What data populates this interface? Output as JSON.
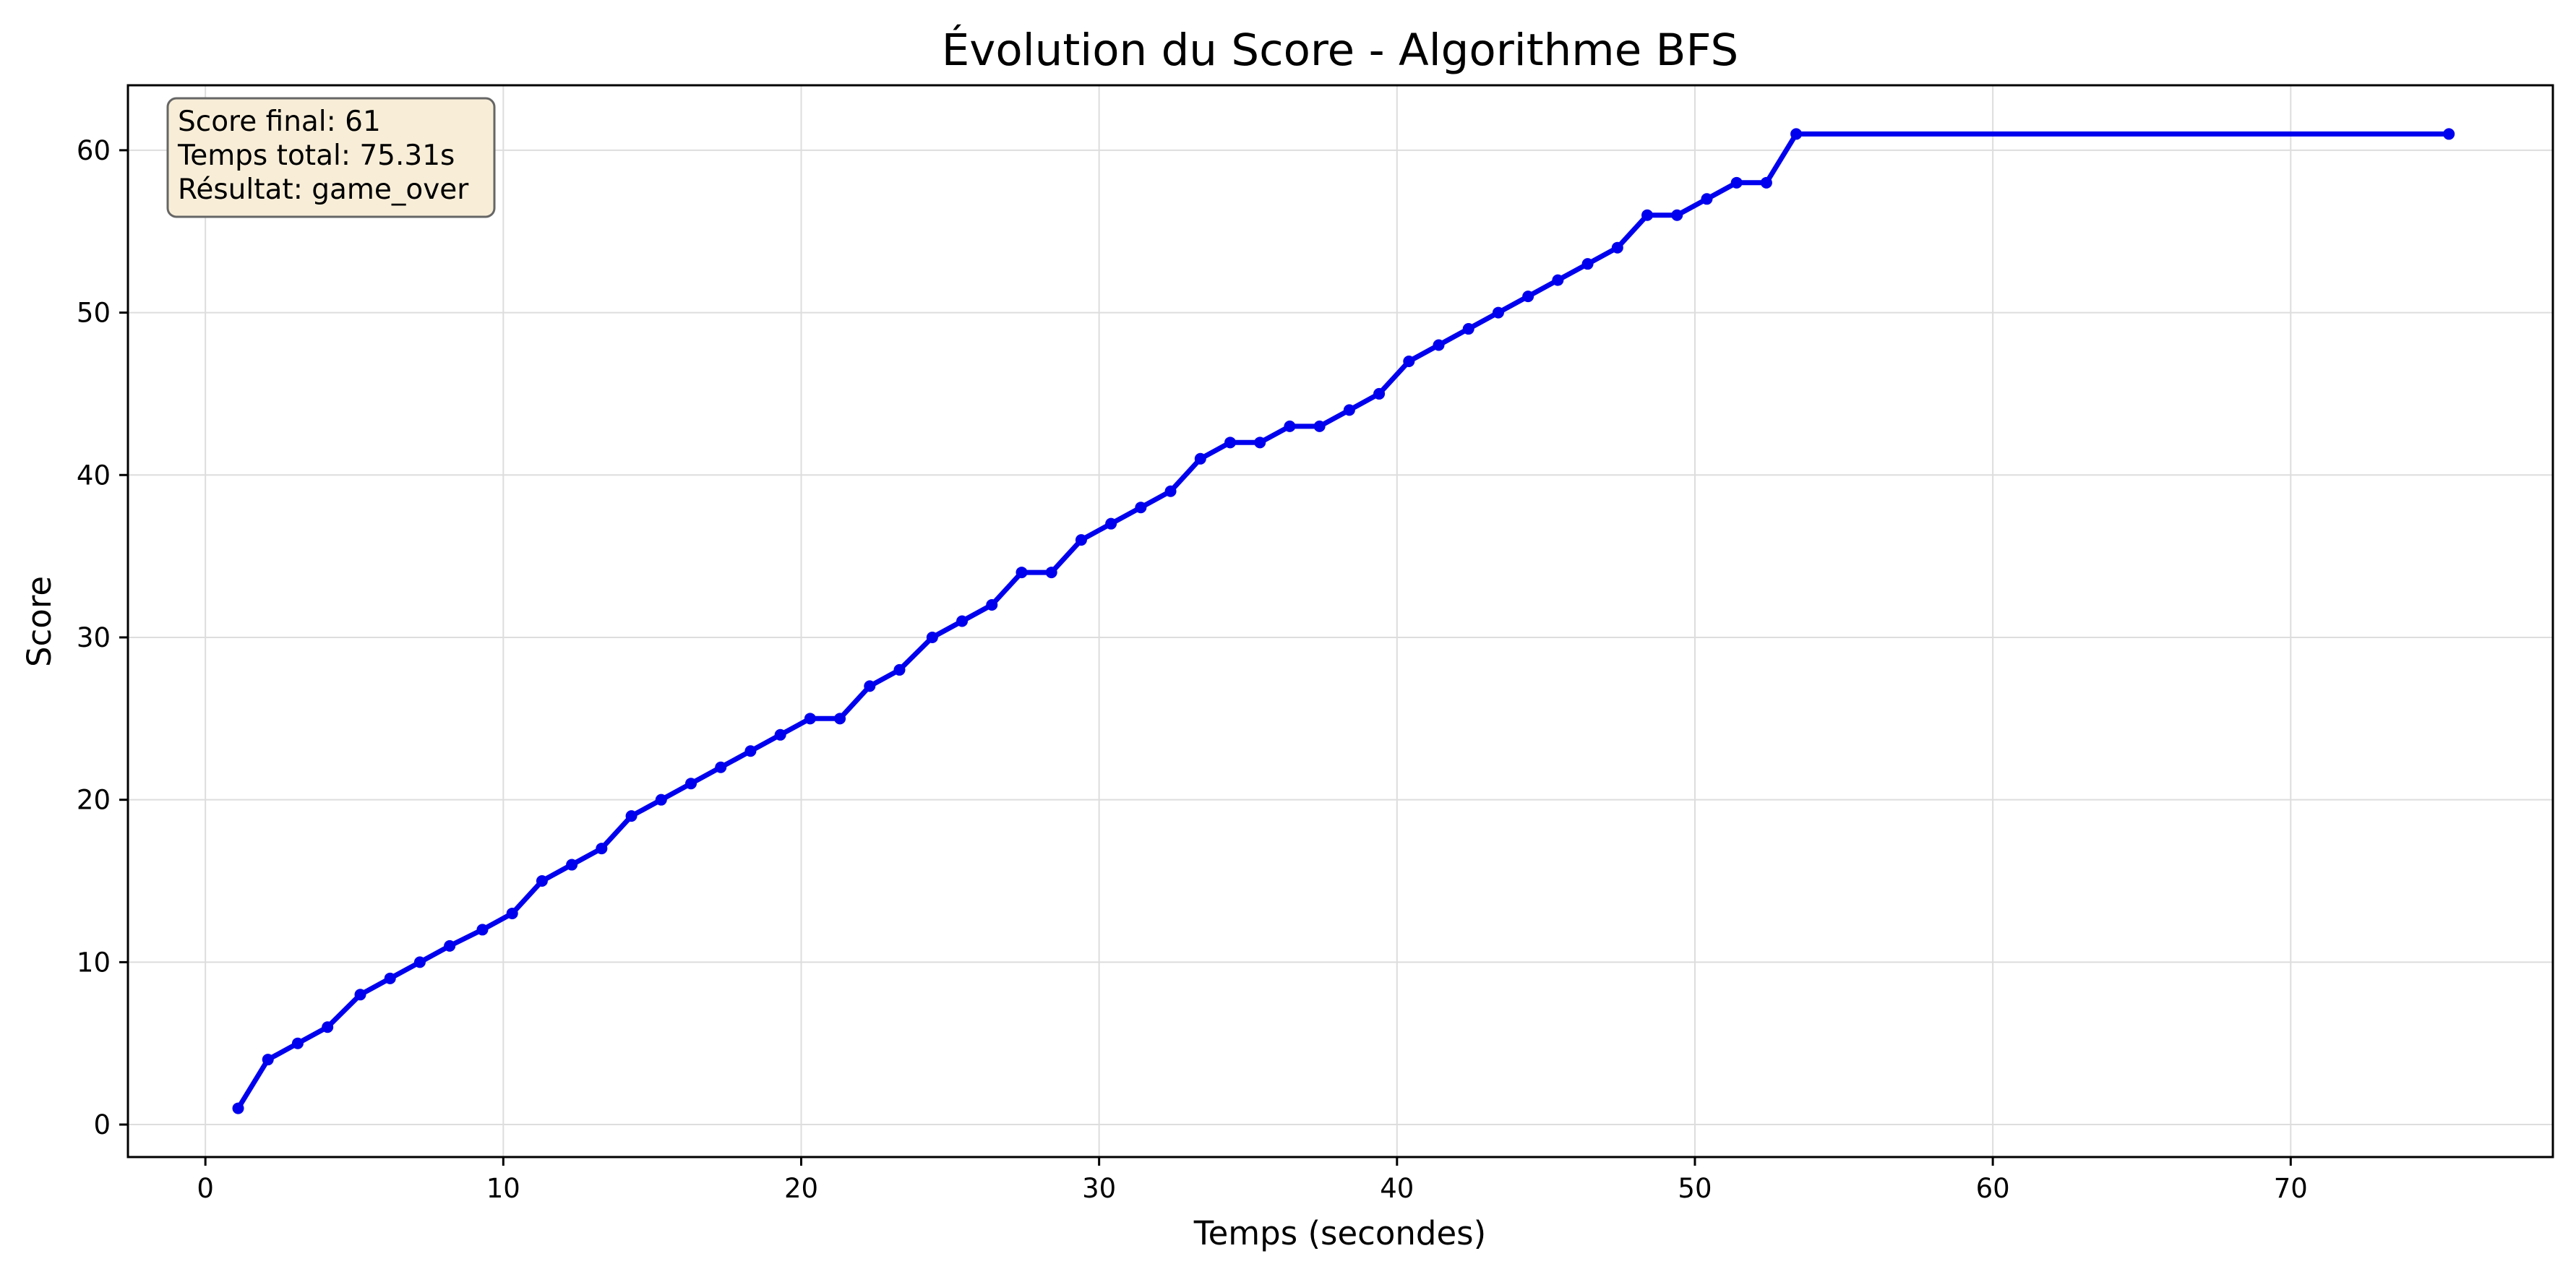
{
  "chart_data": {
    "type": "line",
    "title": "Évolution du Score - Algorithme BFS",
    "xlabel": "Temps (secondes)",
    "ylabel": "Score",
    "xlim": [
      -2.6,
      78.8
    ],
    "ylim": [
      -2.0,
      64.0
    ],
    "xticks": [
      0,
      10,
      20,
      30,
      40,
      50,
      60,
      70
    ],
    "yticks": [
      0,
      10,
      20,
      30,
      40,
      50,
      60
    ],
    "grid": true,
    "legend": "none",
    "line_color": "#0000ee",
    "annotation": {
      "lines": [
        "Score final: 61",
        "Temps total: 75.31s",
        "Résultat: game_over"
      ],
      "placement": "top-left",
      "background": "#f8eed8",
      "border": "#666666"
    },
    "series": [
      {
        "x": [
          1.1,
          2.1,
          3.1,
          4.1,
          5.2,
          6.2,
          7.2,
          8.2,
          9.3,
          10.3,
          11.3,
          12.3,
          13.3,
          14.3,
          15.3,
          16.3,
          17.3,
          18.3,
          19.3,
          20.3,
          21.3,
          22.3,
          23.3,
          24.4,
          25.4,
          26.4,
          27.4,
          28.4,
          29.4,
          30.4,
          31.4,
          32.4,
          33.4,
          34.4,
          35.4,
          36.4,
          37.4,
          38.4,
          39.4,
          40.4,
          41.4,
          42.4,
          43.4,
          44.4,
          45.4,
          46.4,
          47.4,
          48.4,
          49.4,
          50.4,
          51.4,
          52.4,
          53.4,
          75.31
        ],
        "y": [
          1,
          4,
          5,
          6,
          8,
          9,
          10,
          11,
          12,
          13,
          15,
          16,
          17,
          19,
          20,
          21,
          22,
          23,
          24,
          25,
          25,
          27,
          28,
          30,
          31,
          32,
          34,
          34,
          36,
          37,
          38,
          39,
          41,
          42,
          42,
          43,
          43,
          44,
          45,
          47,
          48,
          49,
          50,
          51,
          52,
          53,
          54,
          56,
          56,
          57,
          58,
          58,
          61,
          61
        ]
      }
    ]
  }
}
